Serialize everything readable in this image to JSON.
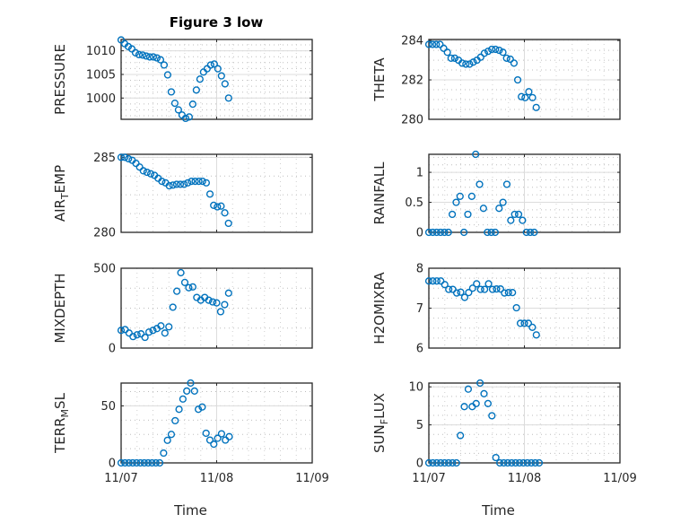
{
  "chart_data": {
    "type": "scatter",
    "title": "Figure 3 low",
    "xlabel": "Time",
    "x_unit": "hours since 11/07 00:00",
    "xlim_hours": [
      0,
      48
    ],
    "xticks": [
      {
        "hours": 0,
        "label": "11/07"
      },
      {
        "hours": 24,
        "label": "11/08"
      },
      {
        "hours": 48,
        "label": "11/09"
      }
    ],
    "grid": true,
    "marker": "open-circle",
    "color": "#0072BD",
    "panels": [
      {
        "ylabel": "PRESSURE",
        "ylim": [
          995.5,
          1012.4
        ],
        "yticks": [
          1000,
          1005,
          1010
        ],
        "ytick_labels": [
          "1000",
          "1005",
          "1010"
        ],
        "start_hours": 0,
        "step_hours": 0.9,
        "values": [
          1012.3,
          1011.5,
          1010.9,
          1010.4,
          1009.6,
          1009.2,
          1009.1,
          1008.9,
          1008.7,
          1008.7,
          1008.5,
          1008.1,
          1007,
          1004.9,
          1001.3,
          998.9,
          997.5,
          996.4,
          995.7,
          996,
          998.7,
          1001.7,
          1004,
          1005.5,
          1006.2,
          1007,
          1007.2,
          1006.2,
          1004.7,
          1003,
          1000
        ]
      },
      {
        "ylabel": "THETA",
        "ylim": [
          280,
          284.05
        ],
        "yticks": [
          280,
          282,
          284
        ],
        "ytick_labels": [
          "280",
          "282",
          "284"
        ],
        "start_hours": 0,
        "step_hours": 0.93,
        "values": [
          283.8,
          283.8,
          283.8,
          283.8,
          283.6,
          283.4,
          283.1,
          283.1,
          283.0,
          282.85,
          282.8,
          282.8,
          282.9,
          283.0,
          283.15,
          283.35,
          283.45,
          283.55,
          283.55,
          283.5,
          283.4,
          283.1,
          283.05,
          282.85,
          282.0,
          281.15,
          281.1,
          281.4,
          281.1,
          280.6
        ]
      },
      {
        "ylabel": "AIR_TEMP",
        "ylim": [
          280,
          285.2
        ],
        "yticks": [
          280,
          285
        ],
        "ytick_labels": [
          "280",
          "285"
        ],
        "start_hours": 0,
        "step_hours": 0.93,
        "values": [
          285.0,
          285.0,
          284.9,
          284.8,
          284.6,
          284.35,
          284.1,
          284.0,
          283.9,
          283.8,
          283.6,
          283.4,
          283.3,
          283.1,
          283.15,
          283.2,
          283.2,
          283.2,
          283.3,
          283.4,
          283.4,
          283.4,
          283.4,
          283.3,
          282.55,
          281.8,
          281.7,
          281.75,
          281.3,
          280.6
        ]
      },
      {
        "ylabel": "RAINFALL",
        "ylim": [
          0,
          1.3
        ],
        "yticks": [
          0,
          0.5,
          1
        ],
        "ytick_labels": [
          "0",
          "0.5",
          "1"
        ],
        "start_hours": 0,
        "step_hours": 0.98,
        "values": [
          0,
          0,
          0,
          0,
          0,
          0,
          0.3,
          0.5,
          0.6,
          0,
          0.3,
          0.6,
          1.3,
          0.8,
          0.4,
          0,
          0,
          0,
          0.4,
          0.5,
          0.8,
          0.2,
          0.3,
          0.3,
          0.2,
          0,
          0,
          0
        ]
      },
      {
        "ylabel": "MIXDEPTH",
        "ylim": [
          0,
          500
        ],
        "yticks": [
          0,
          500
        ],
        "ytick_labels": [
          "0",
          "500"
        ],
        "start_hours": 0,
        "step_hours": 1.0,
        "values": [
          111,
          116,
          94,
          72,
          83,
          89,
          67,
          100,
          111,
          122,
          139,
          94,
          133,
          256,
          356,
          472,
          411,
          378,
          383,
          317,
          300,
          317,
          300,
          289,
          283,
          228,
          272,
          344
        ]
      },
      {
        "ylabel": "H2OMIXRA",
        "ylim": [
          6,
          8
        ],
        "yticks": [
          6,
          7,
          8
        ],
        "ytick_labels": [
          "6",
          "7",
          "8"
        ],
        "start_hours": 0,
        "step_hours": 1.0,
        "values": [
          7.68,
          7.68,
          7.68,
          7.68,
          7.59,
          7.47,
          7.47,
          7.38,
          7.4,
          7.27,
          7.39,
          7.5,
          7.61,
          7.47,
          7.47,
          7.61,
          7.47,
          7.48,
          7.48,
          7.38,
          7.39,
          7.39,
          7.01,
          6.62,
          6.62,
          6.62,
          6.52,
          6.33
        ]
      },
      {
        "ylabel": "TERR_MSL",
        "ylim": [
          0,
          70
        ],
        "yticks": [
          0,
          50
        ],
        "ytick_labels": [
          "0",
          "50"
        ],
        "start_hours": 0,
        "step_hours": 0.97,
        "values": [
          0,
          0,
          0,
          0,
          0,
          0,
          0,
          0,
          0,
          0,
          0,
          8.6,
          19.8,
          25,
          37,
          47,
          56,
          63,
          70,
          63,
          47,
          49,
          26,
          20,
          16.4,
          21.6,
          25.5,
          20,
          23
        ]
      },
      {
        "ylabel": "SUN_FLUX",
        "ylim": [
          0,
          10.5
        ],
        "yticks": [
          0,
          5,
          10
        ],
        "ytick_labels": [
          "0",
          "5",
          "10"
        ],
        "start_hours": 0,
        "step_hours": 0.99,
        "values": [
          0,
          0,
          0,
          0,
          0,
          0,
          0,
          0,
          3.6,
          7.4,
          9.7,
          7.4,
          7.8,
          10.5,
          9.1,
          7.8,
          6.2,
          0.7,
          0,
          0,
          0,
          0,
          0,
          0,
          0,
          0,
          0,
          0,
          0
        ]
      }
    ]
  }
}
